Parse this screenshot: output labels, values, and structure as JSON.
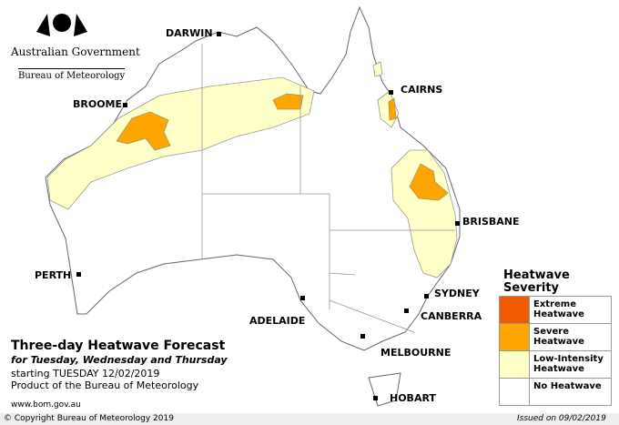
{
  "header": {
    "government": "Australian Government",
    "agency": "Bureau of Meteorology"
  },
  "cities": [
    {
      "label": "DARWIN"
    },
    {
      "label": "CAIRNS"
    },
    {
      "label": "BROOME"
    },
    {
      "label": "BRISBANE"
    },
    {
      "label": "PERTH"
    },
    {
      "label": "SYDNEY"
    },
    {
      "label": "ADELAIDE"
    },
    {
      "label": "CANBERRA"
    },
    {
      "label": "MELBOURNE"
    },
    {
      "label": "HOBART"
    }
  ],
  "title": {
    "main": "Three-day Heatwave Forecast",
    "subtitle": "for Tuesday, Wednesday and Thursday",
    "starting": "starting TUESDAY 12/02/2019",
    "product": "Product of the Bureau of Meteorology",
    "url": "www.bom.gov.au"
  },
  "legend": {
    "title": "Heatwave Severity",
    "items": [
      {
        "label": "Extreme Heatwave",
        "color": "#f05a00"
      },
      {
        "label": "Severe Heatwave",
        "color": "#ffa500"
      },
      {
        "label": "Low-Intensity Heatwave",
        "color": "#ffffc8"
      },
      {
        "label": "No Heatwave",
        "color": "#ffffff"
      }
    ]
  },
  "footer": {
    "copyright": "© Copyright Bureau of Meteorology 2019",
    "issued": "Issued on 09/02/2019"
  }
}
